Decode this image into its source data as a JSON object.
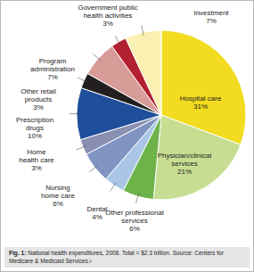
{
  "chart_data": {
    "type": "pie",
    "caption": "Fig. 1: National health expenditures, 2008. Total = $2.3 trillion. Source: Centers for Medicare & Medicaid Services.¹",
    "categories": [
      "Hospital care",
      "Physician/clinical services",
      "Other professional services",
      "Dental",
      "Nursing home care",
      "Home health care",
      "Prescription drugs",
      "Other retail products",
      "Program administration",
      "Government public health activities",
      "Investment"
    ],
    "values": [
      31,
      21,
      6,
      4,
      6,
      3,
      10,
      3,
      7,
      3,
      7
    ],
    "value_labels": [
      "31%",
      "21%",
      "6%",
      "4%",
      "6%",
      "3%",
      "10%",
      "3%",
      "7%",
      "3%",
      "7%"
    ],
    "colors": [
      "#f3db1f",
      "#c7de92",
      "#6db34a",
      "#aac6e6",
      "#7f94c0",
      "#8a90b2",
      "#1f4e9b",
      "#231f20",
      "#d89c98",
      "#b3202f",
      "#faf0b2"
    ],
    "data_labels": true
  }
}
